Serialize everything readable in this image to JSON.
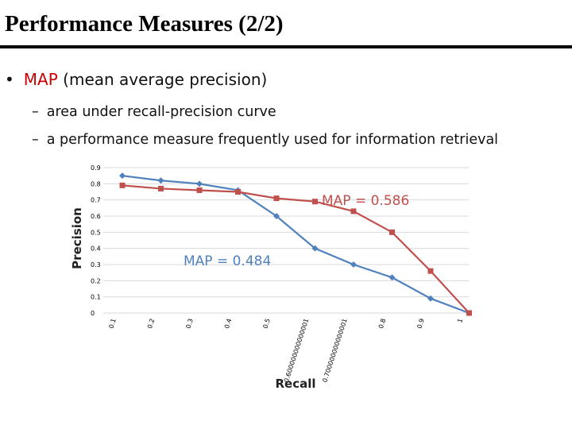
{
  "slide": {
    "title": "Performance Measures (2/2)",
    "bullet_marker": "•",
    "bullet_accent": "MAP",
    "bullet_rest": " (mean average precision)",
    "sub_marker": "–",
    "sub_items": [
      "area under recall-precision curve",
      "a performance measure frequently used for information retrieval"
    ]
  },
  "colors": {
    "accent": "#cc0000",
    "series_blue": "#4f81bd",
    "series_red": "#c0504d",
    "annotation_blue": "#4f81bd",
    "annotation_red": "#c0504d",
    "gridline": "#d9d9d9"
  },
  "chart_data": {
    "type": "line",
    "xlabel": "Recall",
    "ylabel": "Precision",
    "ylim": [
      0,
      0.9
    ],
    "y_ticks": [
      "0",
      "0.1",
      "0.2",
      "0.3",
      "0.4",
      "0.5",
      "0.6",
      "0.7",
      "0.8",
      "0.9"
    ],
    "x_categories": [
      "0.1",
      "0.2",
      "0.3",
      "0.4",
      "0.5",
      "0.600000000000001",
      "0.700000000000001",
      "0.8",
      "0.9",
      "1"
    ],
    "grid": true,
    "series": [
      {
        "color": "blue",
        "marker": "diamond",
        "values": [
          0.85,
          0.82,
          0.8,
          0.76,
          0.6,
          0.4,
          0.3,
          0.22,
          0.09,
          0.0
        ]
      },
      {
        "color": "red",
        "marker": "square",
        "values": [
          0.79,
          0.77,
          0.76,
          0.75,
          0.71,
          0.69,
          0.63,
          0.5,
          0.26,
          0.0
        ]
      }
    ],
    "annotations": [
      {
        "text": "MAP = 0.586",
        "color": "red"
      },
      {
        "text": "MAP = 0.484",
        "color": "blue"
      }
    ]
  }
}
